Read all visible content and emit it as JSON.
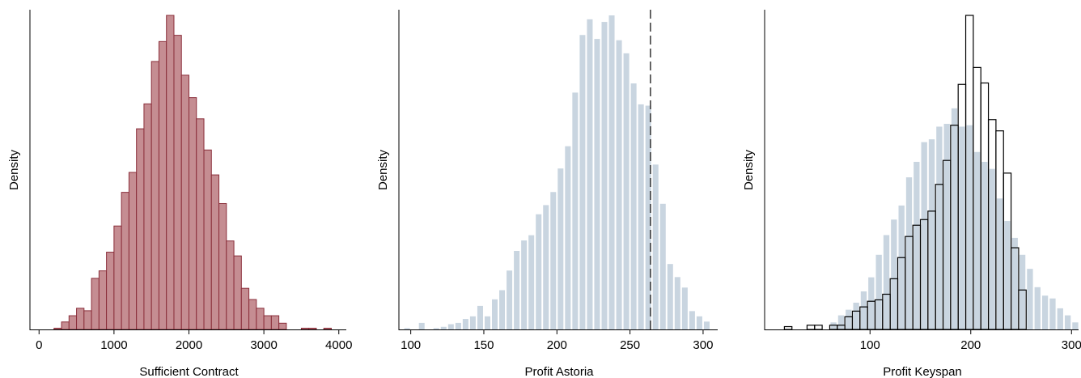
{
  "colors": {
    "hist1_fill": "#c58d92",
    "hist1_stroke": "#8a2e3a",
    "hist2_fill": "#c9d5e0",
    "hist3_open_stroke": "#000000",
    "axis": "#000000"
  },
  "chart_data": [
    {
      "type": "histogram",
      "xlabel": "Sufficient Contract",
      "ylabel": "Density",
      "xlim": [
        -100,
        4100
      ],
      "xticks": [
        "0",
        "1000",
        "2000",
        "3000",
        "4000"
      ],
      "bin_width": 100,
      "series": [
        {
          "style": "filled",
          "bin_starts": [
            200,
            300,
            400,
            500,
            600,
            700,
            800,
            900,
            1000,
            1100,
            1200,
            1300,
            1400,
            1500,
            1600,
            1700,
            1800,
            1900,
            2000,
            2100,
            2200,
            2300,
            2400,
            2500,
            2600,
            2700,
            2800,
            2900,
            3000,
            3100,
            3200,
            3300,
            3400,
            3500,
            3600,
            3700,
            3800
          ],
          "values": [
            1,
            6,
            11,
            17,
            15,
            41,
            47,
            62,
            83,
            110,
            126,
            161,
            181,
            215,
            231,
            252,
            236,
            204,
            186,
            169,
            144,
            124,
            101,
            71,
            59,
            33,
            24,
            17,
            11,
            11,
            5,
            0,
            0,
            1,
            1,
            0,
            1
          ]
        }
      ]
    },
    {
      "type": "histogram",
      "xlabel": "Profit Astoria",
      "ylabel": "Density",
      "xlim": [
        93,
        310
      ],
      "xticks": [
        "100",
        "150",
        "200",
        "250",
        "300"
      ],
      "bin_width": 5,
      "reference_line_x": 264,
      "series": [
        {
          "style": "filled",
          "bin_starts": [
            95,
            100,
            105,
            110,
            115,
            120,
            125,
            130,
            135,
            140,
            145,
            150,
            155,
            160,
            165,
            170,
            175,
            180,
            185,
            190,
            195,
            200,
            205,
            210,
            215,
            220,
            225,
            230,
            235,
            240,
            245,
            250,
            255,
            260,
            265,
            270,
            275,
            280,
            285,
            290,
            295,
            300
          ],
          "values": [
            1,
            0,
            5,
            0,
            1,
            2,
            4,
            5,
            8,
            10,
            18,
            10,
            23,
            30,
            45,
            60,
            68,
            72,
            88,
            95,
            105,
            123,
            140,
            181,
            225,
            237,
            222,
            235,
            240,
            221,
            211,
            188,
            172,
            171,
            126,
            96,
            50,
            40,
            32,
            14,
            10,
            6
          ]
        }
      ]
    },
    {
      "type": "histogram",
      "xlabel": "Profit Keyspan",
      "ylabel": "Density",
      "xlim": [
        -3,
        307
      ],
      "xticks": [
        "100",
        "200",
        "300"
      ],
      "bin_width": 7.5,
      "series": [
        {
          "style": "filled",
          "bin_starts": [
            60,
            67.5,
            75,
            82.5,
            90,
            97.5,
            105,
            112.5,
            120,
            127.5,
            135,
            142.5,
            150,
            157.5,
            165,
            172.5,
            180,
            187.5,
            195,
            202.5,
            210,
            217.5,
            225,
            232.5,
            240,
            247.5,
            255,
            262.5,
            270,
            277.5,
            285,
            292.5,
            300
          ],
          "values": [
            5,
            10,
            14,
            19,
            27,
            37,
            53,
            67,
            78,
            88,
            108,
            119,
            133,
            135,
            144,
            146,
            157,
            144,
            145,
            126,
            119,
            114,
            93,
            77,
            65,
            53,
            43,
            30,
            24,
            22,
            15,
            10,
            5
          ]
        },
        {
          "style": "open",
          "bin_starts": [
            15,
            30,
            37.5,
            45,
            52.5,
            60,
            67.5,
            75,
            82.5,
            90,
            97.5,
            105,
            112.5,
            120,
            127.5,
            135,
            142.5,
            150,
            157.5,
            165,
            172.5,
            180,
            187.5,
            195,
            202.5,
            210,
            217.5,
            225,
            232.5,
            240,
            247.5
          ],
          "values": [
            2,
            0,
            3,
            3,
            0,
            3,
            3,
            9,
            13,
            16,
            20,
            21,
            25,
            36,
            51,
            66,
            74,
            78,
            84,
            103,
            120,
            145,
            174,
            223,
            186,
            175,
            149,
            141,
            111,
            58,
            28
          ]
        }
      ]
    }
  ]
}
